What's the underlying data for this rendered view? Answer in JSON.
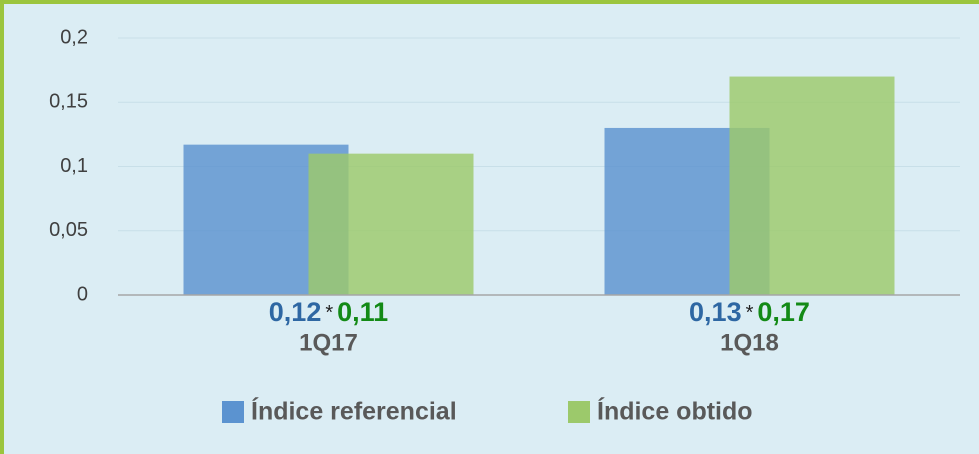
{
  "chart_data": {
    "type": "bar",
    "categories": [
      "1Q17",
      "1Q18"
    ],
    "series": [
      {
        "name": "Índice referencial",
        "color": "#5b93d0",
        "label_color": "#2e67a3",
        "values": [
          0.117,
          0.13
        ],
        "value_labels": [
          "0,12",
          "0,13"
        ]
      },
      {
        "name": "Índice obtido",
        "color": "#9cc96b",
        "label_color": "#138a16",
        "values": [
          0.11,
          0.17
        ],
        "value_labels": [
          "0,11",
          "0,17"
        ]
      }
    ],
    "separator": "*",
    "ylim": [
      0,
      0.2
    ],
    "yticks": [
      0,
      {
        "value": 0.05,
        "label": "0,05"
      },
      {
        "value": 0.1,
        "label": "0,1"
      },
      {
        "value": 0.15,
        "label": "0,15"
      },
      {
        "value": 0.2,
        "label": "0,2"
      }
    ],
    "grid": true,
    "legend": "bottom"
  }
}
